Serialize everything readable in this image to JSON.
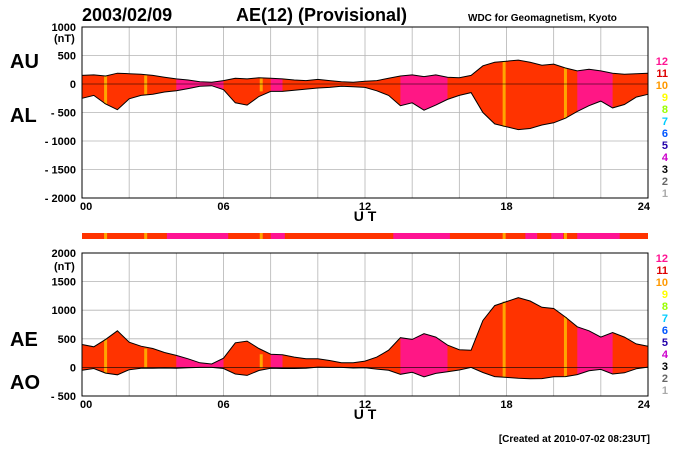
{
  "header": {
    "date": "2003/02/09",
    "title": "AE(12) (Provisional)",
    "source": "WDC for Geomagnetism, Kyoto"
  },
  "footer": {
    "created": "[Created at 2010-07-02 08:23UT]"
  },
  "colors": {
    "fill_main": "#ff3300",
    "fill_alt": "#ff1493",
    "fill_peak": "#ffa500",
    "outline": "#000000",
    "grid": "#b4b4b4"
  },
  "station_legend": {
    "values": [
      "12",
      "11",
      "10",
      "9",
      "8",
      "7",
      "6",
      "5",
      "4",
      "3",
      "2",
      "1"
    ],
    "colors": [
      "#ff1493",
      "#dd0000",
      "#ff9900",
      "#ffff00",
      "#99ff00",
      "#00ccff",
      "#0055ff",
      "#2200aa",
      "#cc00cc",
      "#000000",
      "#666666",
      "#aaaaaa"
    ]
  },
  "chart_data": [
    {
      "type": "area",
      "panel": "AU/AL",
      "side_labels": [
        "AU",
        "AL"
      ],
      "xlabel": "U T",
      "unit_label": "(nT)",
      "xlim": [
        0,
        24
      ],
      "xticks": [
        "00",
        "06",
        "12",
        "18",
        "24"
      ],
      "ylim": [
        -2000,
        1000
      ],
      "yticks": [
        "1000",
        "500",
        "0",
        "- 500",
        "- 1000",
        "- 1500",
        "- 2000"
      ],
      "grid": true,
      "series": [
        {
          "x": [
            0,
            0.5,
            1,
            1.5,
            2,
            2.5,
            3,
            3.5,
            4,
            4.5,
            5,
            5.5,
            6,
            6.5,
            7,
            7.5,
            8,
            8.5,
            9,
            9.5,
            10,
            10.5,
            11,
            11.5,
            12,
            12.5,
            13,
            13.5,
            14,
            14.5,
            15,
            15.5,
            16,
            16.5,
            17,
            17.5,
            18,
            18.5,
            19,
            19.5,
            20,
            20.5,
            21,
            21.5,
            22,
            22.5,
            23,
            23.5,
            24
          ],
          "values": [
            150,
            160,
            140,
            190,
            180,
            170,
            150,
            120,
            90,
            70,
            40,
            30,
            60,
            100,
            90,
            110,
            100,
            90,
            70,
            60,
            80,
            60,
            40,
            30,
            50,
            60,
            100,
            140,
            160,
            130,
            160,
            120,
            110,
            150,
            320,
            380,
            400,
            420,
            380,
            330,
            350,
            280,
            230,
            260,
            230,
            190,
            170,
            180,
            190
          ]
        },
        {
          "x": [
            0,
            0.5,
            1,
            1.5,
            2,
            2.5,
            3,
            3.5,
            4,
            4.5,
            5,
            5.5,
            6,
            6.5,
            7,
            7.5,
            8,
            8.5,
            9,
            9.5,
            10,
            10.5,
            11,
            11.5,
            12,
            12.5,
            13,
            13.5,
            14,
            14.5,
            15,
            15.5,
            16,
            16.5,
            17,
            17.5,
            18,
            18.5,
            19,
            19.5,
            20,
            20.5,
            21,
            21.5,
            22,
            22.5,
            23,
            23.5,
            24
          ],
          "values": [
            -250,
            -200,
            -350,
            -450,
            -260,
            -200,
            -180,
            -140,
            -120,
            -80,
            -40,
            -30,
            -100,
            -330,
            -370,
            -220,
            -130,
            -130,
            -110,
            -90,
            -70,
            -60,
            -40,
            -50,
            -60,
            -120,
            -200,
            -380,
            -330,
            -460,
            -370,
            -270,
            -200,
            -150,
            -500,
            -700,
            -750,
            -800,
            -780,
            -720,
            -680,
            -600,
            -480,
            -380,
            -300,
            -420,
            -360,
            -230,
            -180
          ]
        }
      ]
    },
    {
      "type": "area",
      "panel": "AE/AO",
      "side_labels": [
        "AE",
        "AO"
      ],
      "xlabel": "U T",
      "unit_label": "(nT)",
      "xlim": [
        0,
        24
      ],
      "xticks": [
        "00",
        "06",
        "12",
        "18",
        "24"
      ],
      "ylim": [
        -500,
        2000
      ],
      "yticks": [
        "2000",
        "1500",
        "1000",
        "500",
        "0",
        "- 500"
      ],
      "grid": true,
      "series": [
        {
          "x": [
            0,
            0.5,
            1,
            1.5,
            2,
            2.5,
            3,
            3.5,
            4,
            4.5,
            5,
            5.5,
            6,
            6.5,
            7,
            7.5,
            8,
            8.5,
            9,
            9.5,
            10,
            10.5,
            11,
            11.5,
            12,
            12.5,
            13,
            13.5,
            14,
            14.5,
            15,
            15.5,
            16,
            16.5,
            17,
            17.5,
            18,
            18.5,
            19,
            19.5,
            20,
            20.5,
            21,
            21.5,
            22,
            22.5,
            23,
            23.5,
            24
          ],
          "values": [
            400,
            360,
            490,
            640,
            440,
            370,
            330,
            260,
            210,
            150,
            80,
            60,
            160,
            430,
            460,
            330,
            230,
            220,
            180,
            150,
            150,
            120,
            80,
            80,
            110,
            180,
            300,
            520,
            490,
            590,
            530,
            390,
            310,
            300,
            820,
            1080,
            1150,
            1220,
            1160,
            1050,
            1030,
            880,
            710,
            640,
            530,
            610,
            530,
            410,
            370
          ]
        },
        {
          "x": [
            0,
            0.5,
            1,
            1.5,
            2,
            2.5,
            3,
            3.5,
            4,
            4.5,
            5,
            5.5,
            6,
            6.5,
            7,
            7.5,
            8,
            8.5,
            9,
            9.5,
            10,
            10.5,
            11,
            11.5,
            12,
            12.5,
            13,
            13.5,
            14,
            14.5,
            15,
            15.5,
            16,
            16.5,
            17,
            17.5,
            18,
            18.5,
            19,
            19.5,
            20,
            20.5,
            21,
            21.5,
            22,
            22.5,
            23,
            23.5,
            24
          ],
          "values": [
            -50,
            -20,
            -100,
            -130,
            -40,
            -15,
            -15,
            -10,
            -15,
            -5,
            0,
            0,
            -20,
            -115,
            -140,
            -55,
            -15,
            -20,
            -20,
            -15,
            5,
            0,
            0,
            -10,
            -5,
            -30,
            -50,
            -120,
            -85,
            -165,
            -105,
            -75,
            -45,
            0,
            -90,
            -160,
            -175,
            -190,
            -200,
            -195,
            -165,
            -160,
            -125,
            -60,
            -35,
            -115,
            -95,
            -25,
            5
          ]
        }
      ]
    }
  ]
}
